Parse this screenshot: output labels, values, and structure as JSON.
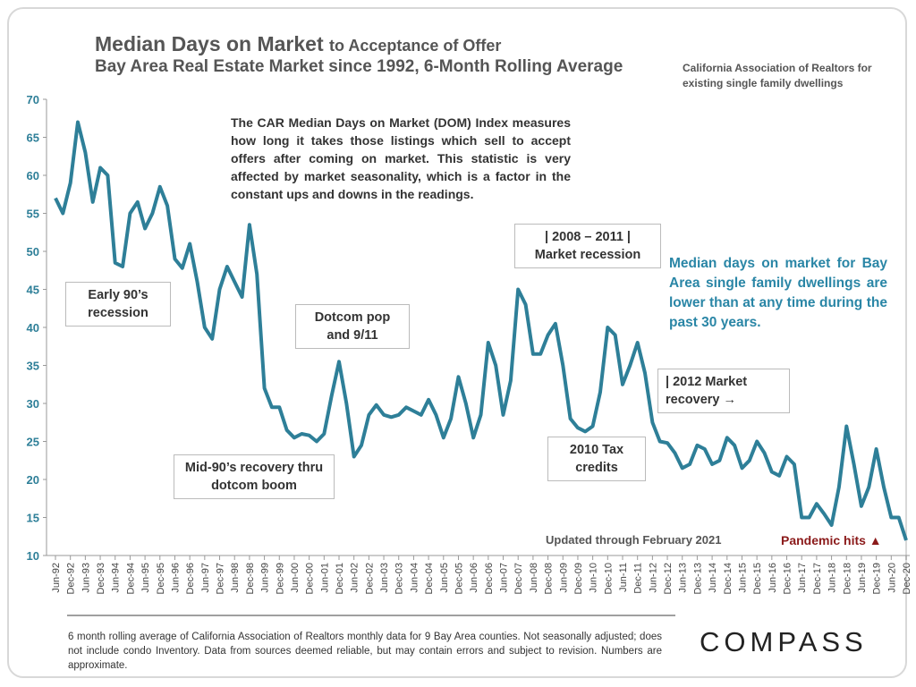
{
  "chart_data": {
    "type": "line",
    "title": "Median Days on Market",
    "title_suffix": "to Acceptance of Offer",
    "subtitle": "Bay Area Real Estate Market since 1992, 6-Month Rolling Average",
    "source": "California Association of Realtors for existing single family dwellings",
    "color": "#2e7f98",
    "ylim": [
      10,
      70
    ],
    "yticks": [
      10,
      15,
      20,
      25,
      30,
      35,
      40,
      45,
      50,
      55,
      60,
      65,
      70
    ],
    "categories": [
      "Jun-92",
      null,
      "Dec-92",
      null,
      "Jun-93",
      null,
      "Dec-93",
      null,
      "Jun-94",
      null,
      "Dec-94",
      null,
      "Jun-95",
      null,
      "Dec-95",
      null,
      "Jun-96",
      null,
      "Dec-96",
      null,
      "Jun-97",
      null,
      "Dec-97",
      null,
      "Jun-98",
      null,
      "Dec-98",
      null,
      "Jun-99",
      null,
      "Dec-99",
      null,
      "Jun-00",
      null,
      "Dec-00",
      null,
      "Jun-01",
      null,
      "Dec-01",
      null,
      "Jun-02",
      null,
      "Dec-02",
      null,
      "Jun-03",
      null,
      "Dec-03",
      null,
      "Jun-04",
      null,
      "Dec-04",
      null,
      "Jun-05",
      null,
      "Dec-05",
      null,
      "Jun-06",
      null,
      "Dec-06",
      null,
      "Jun-07",
      null,
      "Dec-07",
      null,
      "Jun-08",
      null,
      "Dec-08",
      null,
      "Jun-09",
      null,
      "Dec-09",
      null,
      "Jun-10",
      null,
      "Dec-10",
      null,
      "Jun-11",
      null,
      "Dec-11",
      null,
      "Jun-12",
      null,
      "Dec-12",
      null,
      "Jun-13",
      null,
      "Dec-13",
      null,
      "Jun-14",
      null,
      "Dec-14",
      null,
      "Jun-15",
      null,
      "Dec-15",
      null,
      "Jun-16",
      null,
      "Dec-16",
      null,
      "Jun-17",
      null,
      "Dec-17",
      null,
      "Jun-18",
      null,
      "Dec-18",
      null,
      "Jun-19",
      null,
      "Dec-19",
      null,
      "Jun-20",
      null,
      "Dec-20"
    ],
    "values": [
      57,
      55,
      59,
      67,
      63,
      56.5,
      61,
      60,
      48.5,
      48,
      55,
      56.5,
      53,
      55,
      58.5,
      56,
      49,
      47.8,
      51,
      46,
      40,
      38.5,
      45,
      48,
      46,
      44,
      53.5,
      47,
      32,
      29.5,
      29.5,
      26.5,
      25.5,
      26,
      25.8,
      25,
      26,
      31,
      35.5,
      30,
      23,
      24.5,
      28.5,
      29.8,
      28.5,
      28.2,
      28.5,
      29.5,
      29,
      28.5,
      30.5,
      28.5,
      25.5,
      28,
      33.5,
      30,
      25.5,
      28.5,
      38,
      35,
      28.5,
      33,
      45,
      43,
      36.5,
      36.5,
      39,
      40.5,
      35,
      28,
      26.8,
      26.3,
      27,
      31.5,
      40,
      39,
      32.5,
      35,
      38,
      34,
      27.5,
      25,
      24.8,
      23.5,
      21.5,
      22,
      24.5,
      24,
      22,
      22.5,
      25.5,
      24.5,
      21.5,
      22.5,
      25,
      23.5,
      21,
      20.5,
      23,
      22,
      15,
      15,
      16.8,
      15.5,
      14,
      19,
      27,
      22,
      16.5,
      19,
      24,
      19,
      15,
      15,
      12
    ],
    "annotations": [
      {
        "text": "The CAR Median Days on Market (DOM) Index measures how long it takes those listings which sell to accept offers after coming on market. This statistic is very affected by market seasonality, which is a factor in the constant ups and downs in the readings."
      },
      {
        "text": "Early 90’s recession"
      },
      {
        "text": "Mid-90’s recovery thru dotcom boom"
      },
      {
        "text": "Dotcom pop and 9/11"
      },
      {
        "text": "| 2008 – 2011 | Market recession"
      },
      {
        "text": "2010 Tax credits"
      },
      {
        "text": "| 2012 Market recovery →"
      },
      {
        "text": "Median days on market for Bay Area single family dwellings are lower than at any time during the past 30 years."
      },
      {
        "text": "Updated through February 2021"
      },
      {
        "text": "Pandemic hits ▲"
      }
    ],
    "footnote": "6 month rolling average of California Association of Realtors monthly data for 9 Bay Area counties. Not seasonally adjusted; does not include condo Inventory. Data from sources deemed reliable, but may contain errors and subject to revision. Numbers are approximate.",
    "brand": "COMPASS"
  }
}
